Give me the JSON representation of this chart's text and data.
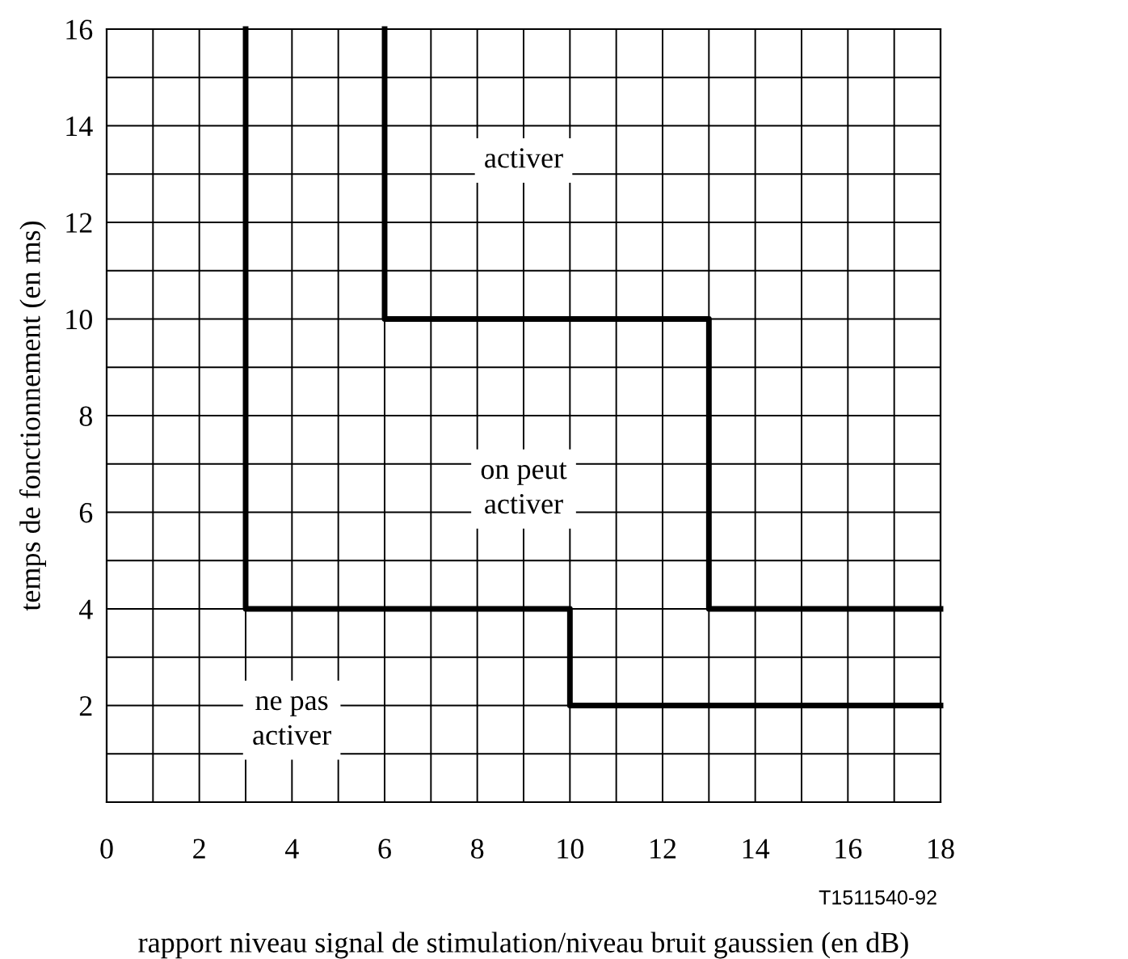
{
  "chart_data": {
    "type": "line",
    "xlabel": "rapport niveau signal de stimulation/niveau bruit gaussien (en dB)",
    "ylabel": "temps de fonctionnement (en ms)",
    "series": [
      {
        "x": [
          3,
          3,
          10,
          10,
          18
        ],
        "values": [
          16,
          4,
          4,
          2,
          2
        ],
        "color": "#000000"
      },
      {
        "x": [
          6,
          6,
          13,
          13,
          18
        ],
        "values": [
          16,
          10,
          10,
          4,
          4
        ],
        "color": "#000000"
      }
    ],
    "xlim": [
      0,
      18
    ],
    "ylim": [
      0,
      16
    ],
    "xticks": [
      0,
      {
        "value": 1,
        "label": null
      },
      2,
      {
        "value": 3,
        "label": null
      },
      4,
      {
        "value": 5,
        "label": null
      },
      6,
      {
        "value": 7,
        "label": null
      },
      8,
      {
        "value": 9,
        "label": null
      },
      10,
      {
        "value": 11,
        "label": null
      },
      12,
      {
        "value": 13,
        "label": null
      },
      14,
      {
        "value": 15,
        "label": null
      },
      16,
      {
        "value": 17,
        "label": null
      },
      18
    ],
    "yticks": [
      {
        "value": 1,
        "label": null
      },
      2,
      {
        "value": 3,
        "label": null
      },
      4,
      {
        "value": 5,
        "label": null
      },
      6,
      {
        "value": 7,
        "label": null
      },
      8,
      {
        "value": 9,
        "label": null
      },
      10,
      {
        "value": 11,
        "label": null
      },
      12,
      {
        "value": 13,
        "label": null
      },
      14,
      {
        "value": 15,
        "label": null
      },
      16
    ],
    "grid": true,
    "legend": false,
    "marker": "none",
    "line_style": "solid",
    "annotations": [
      "activer",
      "on peut\nactiver",
      "ne pas\nactiver",
      "T1511540-92"
    ]
  }
}
